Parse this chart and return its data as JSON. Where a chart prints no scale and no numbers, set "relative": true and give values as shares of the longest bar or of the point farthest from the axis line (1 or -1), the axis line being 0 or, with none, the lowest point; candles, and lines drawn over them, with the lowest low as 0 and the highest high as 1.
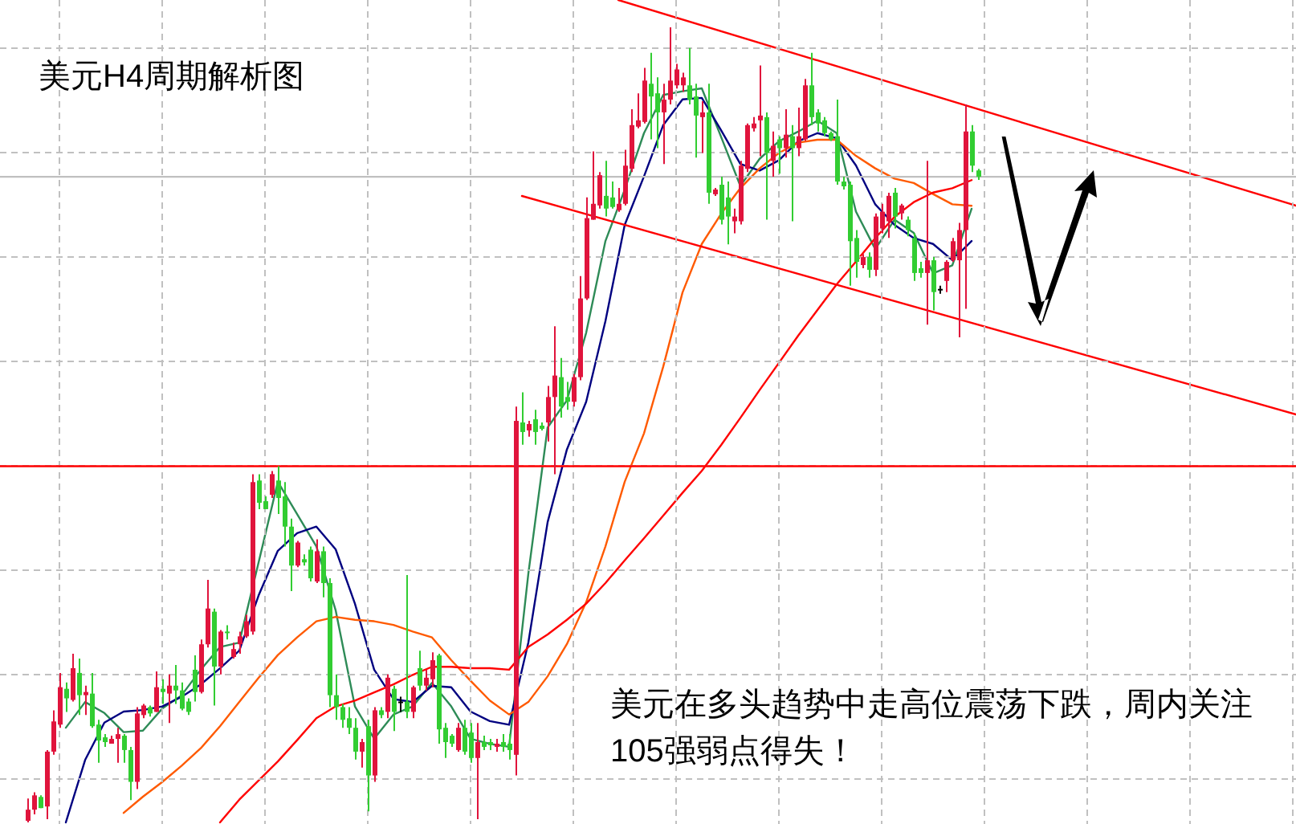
{
  "chart_data": [
    {
      "type": "candlestick",
      "title": "美元H4周期解析图",
      "annotations": [
        "美元在多头趋势中走高位震荡下跌，周内关注105强弱点得失！"
      ],
      "relative": true,
      "grid": true,
      "categories": [
        null,
        null,
        null,
        null,
        null,
        null,
        null,
        null,
        null,
        null,
        null,
        null,
        null,
        null,
        null,
        null,
        null,
        null,
        null,
        null,
        null,
        null,
        null,
        null,
        null,
        null,
        null,
        null,
        null,
        null,
        null,
        null,
        null,
        null,
        null,
        null,
        null,
        null,
        null,
        null,
        null,
        null,
        null,
        null,
        null,
        null,
        null,
        null,
        null,
        null,
        null,
        null,
        null,
        null,
        null,
        null,
        null,
        null,
        null,
        null,
        null,
        null,
        null,
        null,
        null,
        null,
        null,
        null,
        null,
        null,
        null,
        null,
        null,
        null,
        null,
        null,
        null,
        null,
        null,
        null,
        null,
        null,
        null,
        null,
        null,
        null,
        null,
        null,
        null,
        null,
        null,
        null,
        null,
        null,
        null,
        null,
        null,
        null,
        null,
        null,
        null,
        null,
        null,
        null,
        null,
        null,
        null,
        null,
        null,
        null,
        null,
        null,
        null,
        null,
        null,
        null,
        null,
        null,
        null,
        null,
        null,
        null,
        null,
        null,
        null,
        null,
        null,
        null,
        null,
        null,
        null,
        null,
        null,
        null,
        null,
        null,
        null,
        null,
        null,
        null,
        null,
        null,
        null,
        null,
        null,
        null,
        null,
        null,
        null
      ],
      "ohlc": [
        [
          0.002,
          0.03,
          0,
          0.016
        ],
        [
          0.016,
          0.038,
          0.01,
          0.034
        ],
        [
          0.032,
          0.034,
          0.018,
          0.018
        ],
        [
          0.02,
          0.091,
          0.004,
          0.089
        ],
        [
          0.089,
          0.141,
          0.085,
          0.127
        ],
        [
          0.123,
          0.188,
          0.119,
          0.17
        ],
        [
          0.168,
          0.176,
          0.139,
          0.156
        ],
        [
          0.154,
          0.212,
          0.152,
          0.194
        ],
        [
          0.188,
          0.206,
          0.135,
          0.16
        ],
        [
          0.16,
          0.172,
          0.135,
          0.164
        ],
        [
          0.162,
          0.188,
          0.119,
          0.121
        ],
        [
          0.123,
          0.129,
          0.075,
          0.103
        ],
        [
          0.107,
          0.111,
          0.095,
          0.101
        ],
        [
          0.099,
          0.109,
          0.099,
          0.105
        ],
        [
          0.105,
          0.119,
          0.075,
          0.111
        ],
        [
          0.109,
          0.111,
          0.075,
          0.091
        ],
        [
          0.091,
          0.095,
          0.028,
          0.051
        ],
        [
          0.051,
          0.145,
          0.042,
          0.137
        ],
        [
          0.135,
          0.149,
          0.131,
          0.147
        ],
        [
          0.145,
          0.147,
          0.133,
          0.137
        ],
        [
          0.139,
          0.19,
          0.139,
          0.17
        ],
        [
          0.168,
          0.18,
          0.149,
          0.164
        ],
        [
          0.162,
          0.186,
          0.125,
          0.172
        ],
        [
          0.172,
          0.198,
          0.149,
          0.166
        ],
        [
          0.166,
          0.176,
          0.141,
          0.143
        ],
        [
          0.152,
          0.156,
          0.135,
          0.139
        ],
        [
          0.192,
          0.21,
          0.152,
          0.164
        ],
        [
          0.164,
          0.23,
          0.162,
          0.224
        ],
        [
          0.224,
          0.305,
          0.22,
          0.269
        ],
        [
          0.265,
          0.269,
          0.147,
          0.196
        ],
        [
          0.196,
          0.242,
          0.186,
          0.24
        ],
        [
          0.24,
          0.248,
          0.23,
          0.238
        ],
        [
          0.208,
          0.226,
          0.206,
          0.218
        ],
        [
          0.224,
          0.24,
          0.212,
          0.234
        ],
        [
          0.234,
          0.261,
          0.232,
          0.253
        ],
        [
          0.24,
          0.438,
          0.236,
          0.428
        ],
        [
          0.43,
          0.438,
          0.394,
          0.402
        ],
        [
          0.404,
          0.41,
          0.394,
          0.394
        ],
        [
          0.412,
          0.442,
          0.408,
          0.438
        ],
        [
          0.43,
          0.448,
          0.388,
          0.408
        ],
        [
          0.41,
          0.428,
          0.347,
          0.372
        ],
        [
          0.372,
          0.382,
          0.291,
          0.323
        ],
        [
          0.323,
          0.354,
          0.321,
          0.352
        ],
        [
          0.331,
          0.337,
          0.323,
          0.327
        ],
        [
          0.343,
          0.347,
          0.303,
          0.307
        ],
        [
          0.303,
          0.356,
          0.301,
          0.341
        ],
        [
          0.341,
          0.347,
          0.283,
          0.301
        ],
        [
          0.301,
          0.307,
          0.145,
          0.16
        ],
        [
          0.16,
          0.186,
          0.129,
          0.145
        ],
        [
          0.145,
          0.149,
          0.119,
          0.129
        ],
        [
          0.131,
          0.145,
          0.111,
          0.119
        ],
        [
          0.119,
          0.131,
          0.079,
          0.089
        ],
        [
          0.089,
          0.105,
          0.069,
          0.101
        ],
        [
          0.121,
          0.129,
          0.014,
          0.059
        ],
        [
          0.059,
          0.145,
          0.051,
          0.141
        ],
        [
          0.141,
          0.145,
          0.131,
          0.135
        ],
        [
          0.139,
          0.186,
          0.131,
          0.182
        ],
        [
          0.168,
          0.172,
          0.115,
          0.139
        ],
        [
          0.152,
          0.158,
          0.139,
          0.152
        ],
        [
          0.152,
          0.311,
          0.131,
          0.139
        ],
        [
          0.139,
          0.172,
          0.131,
          0.17
        ],
        [
          0.194,
          0.216,
          0.166,
          0.172
        ],
        [
          0.172,
          0.192,
          0.166,
          0.182
        ],
        [
          0.18,
          0.214,
          0.17,
          0.204
        ],
        [
          0.21,
          0.212,
          0.099,
          0.117
        ],
        [
          0.119,
          0.125,
          0.081,
          0.101
        ],
        [
          0.109,
          0.111,
          0.095,
          0.099
        ],
        [
          0.091,
          0.125,
          0.089,
          0.119
        ],
        [
          0.119,
          0.129,
          0.085,
          0.089
        ],
        [
          0.113,
          0.125,
          0.075,
          0.081
        ],
        [
          0.081,
          0.125,
          0.004,
          0.101
        ],
        [
          0.101,
          0.109,
          0.091,
          0.095
        ],
        [
          0.101,
          0.105,
          0.091,
          0.097
        ],
        [
          0.095,
          0.105,
          0.089,
          0.099
        ],
        [
          0.101,
          0.111,
          0.089,
          0.095
        ],
        [
          0.099,
          0.111,
          0.079,
          0.091
        ],
        [
          0.085,
          0.523,
          0.059,
          0.505
        ],
        [
          0.503,
          0.541,
          0.475,
          0.491
        ],
        [
          0.493,
          0.505,
          0.485,
          0.501
        ],
        [
          0.507,
          0.519,
          0.475,
          0.491
        ],
        [
          0.499,
          0.503,
          0.493,
          0.495
        ],
        [
          0.503,
          0.549,
          0.479,
          0.535
        ],
        [
          0.535,
          0.624,
          0.438,
          0.562
        ],
        [
          0.56,
          0.584,
          0.509,
          0.523
        ],
        [
          0.535,
          0.554,
          0.519,
          0.529
        ],
        [
          0.529,
          0.564,
          0.523,
          0.56
        ],
        [
          0.56,
          0.687,
          0.556,
          0.659
        ],
        [
          0.659,
          0.786,
          0.657,
          0.76
        ],
        [
          0.758,
          0.844,
          0.758,
          0.778
        ],
        [
          0.776,
          0.818,
          0.772,
          0.814
        ],
        [
          0.788,
          0.832,
          0.762,
          0.772
        ],
        [
          0.786,
          0.806,
          0.772,
          0.774
        ],
        [
          0.77,
          0.798,
          0.768,
          0.778
        ],
        [
          0.778,
          0.846,
          0.776,
          0.826
        ],
        [
          0.822,
          0.897,
          0.818,
          0.877
        ],
        [
          0.875,
          0.917,
          0.873,
          0.883
        ],
        [
          0.881,
          0.949,
          0.879,
          0.933
        ],
        [
          0.929,
          0.968,
          0.859,
          0.913
        ],
        [
          0.917,
          0.937,
          0.848,
          0.893
        ],
        [
          0.893,
          0.929,
          0.828,
          0.909
        ],
        [
          0.909,
          1,
          0.903,
          0.933
        ],
        [
          0.927,
          0.954,
          0.923,
          0.947
        ],
        [
          0.927,
          0.943,
          0.919,
          0.937
        ],
        [
          0.927,
          0.974,
          0.903,
          0.909
        ],
        [
          0.913,
          0.929,
          0.836,
          0.889
        ],
        [
          0.887,
          0.907,
          0.842,
          0.893
        ],
        [
          0.893,
          0.929,
          0.778,
          0.792
        ],
        [
          0.79,
          0.798,
          0.788,
          0.796
        ],
        [
          0.802,
          0.812,
          0.752,
          0.758
        ],
        [
          0.786,
          0.806,
          0.727,
          0.762
        ],
        [
          0.756,
          0.772,
          0.741,
          0.762
        ],
        [
          0.756,
          0.832,
          0.752,
          0.826
        ],
        [
          0.822,
          0.879,
          0.818,
          0.877
        ],
        [
          0.873,
          0.887,
          0.869,
          0.879
        ],
        [
          0.883,
          0.952,
          0.838,
          0.889
        ],
        [
          0.887,
          0.893,
          0.758,
          0.842
        ],
        [
          0.832,
          0.869,
          0.812,
          0.851
        ],
        [
          0.859,
          0.863,
          0.816,
          0.848
        ],
        [
          0.848,
          0.897,
          0.836,
          0.865
        ],
        [
          0.863,
          0.877,
          0.756,
          0.848
        ],
        [
          0.848,
          0.899,
          0.838,
          0.863
        ],
        [
          0.859,
          0.935,
          0.857,
          0.927
        ],
        [
          0.927,
          0.968,
          0.877,
          0.887
        ],
        [
          0.893,
          0.897,
          0.869,
          0.879
        ],
        [
          0.883,
          0.887,
          0.863,
          0.867
        ],
        [
          0.867,
          0.869,
          0.857,
          0.859
        ],
        [
          0.863,
          0.909,
          0.802,
          0.806
        ],
        [
          0.806,
          0.812,
          0.796,
          0.8
        ],
        [
          0.802,
          0.806,
          0.675,
          0.731
        ],
        [
          0.735,
          0.745,
          0.685,
          0.705
        ],
        [
          0.701,
          0.715,
          0.697,
          0.711
        ],
        [
          0.711,
          0.717,
          0.685,
          0.695
        ],
        [
          0.695,
          0.766,
          0.687,
          0.762
        ],
        [
          0.747,
          0.778,
          0.741,
          0.768
        ],
        [
          0.756,
          0.792,
          0.735,
          0.788
        ],
        [
          0.792,
          0.798,
          0.747,
          0.762
        ],
        [
          0.766,
          0.778,
          0.758,
          0.776
        ],
        [
          0.758,
          0.762,
          0.737,
          0.745
        ],
        [
          0.735,
          0.741,
          0.681,
          0.691
        ],
        [
          0.697,
          0.705,
          0.685,
          0.691
        ],
        [
          0.691,
          0.832,
          0.626,
          0.707
        ],
        [
          0.707,
          0.711,
          0.644,
          0.667
        ],
        [
          0.671,
          0.675,
          0.665,
          0.671
        ],
        [
          0.681,
          0.707,
          0.667,
          0.705
        ],
        [
          0.707,
          0.735,
          0.705,
          0.731
        ],
        [
          0.707,
          0.754,
          0.61,
          0.745
        ],
        [
          0.745,
          0.903,
          0.646,
          0.869
        ],
        [
          0.869,
          0.877,
          0.818,
          0.826
        ],
        [
          0.82,
          0.822,
          0.808,
          0.812
        ]
      ],
      "colors": [
        "#e0143c",
        "#e0143c",
        "#32cd32",
        "#e0143c",
        "#e0143c",
        "#e0143c",
        "#32cd32",
        "#e0143c",
        "#32cd32",
        "#e0143c",
        "#32cd32",
        "#32cd32",
        "#32cd32",
        "#e0143c",
        "#e0143c",
        "#32cd32",
        "#32cd32",
        "#e0143c",
        "#e0143c",
        "#32cd32",
        "#e0143c",
        "#32cd32",
        "#e0143c",
        "#32cd32",
        "#32cd32",
        "#32cd32",
        "#32cd32",
        "#e0143c",
        "#e0143c",
        "#32cd32",
        "#e0143c",
        "#32cd32",
        "#e0143c",
        "#e0143c",
        "#e0143c",
        "#e0143c",
        "#32cd32",
        "#32cd32",
        "#e0143c",
        "#32cd32",
        "#32cd32",
        "#32cd32",
        "#e0143c",
        "#32cd32",
        "#32cd32",
        "#e0143c",
        "#32cd32",
        "#32cd32",
        "#32cd32",
        "#32cd32",
        "#32cd32",
        "#32cd32",
        "#e0143c",
        "#32cd32",
        "#e0143c",
        "#32cd32",
        "#e0143c",
        "#32cd32",
        "#000000",
        "#32cd32",
        "#e0143c",
        "#32cd32",
        "#e0143c",
        "#e0143c",
        "#32cd32",
        "#32cd32",
        "#32cd32",
        "#e0143c",
        "#32cd32",
        "#32cd32",
        "#e0143c",
        "#32cd32",
        "#32cd32",
        "#e0143c",
        "#32cd32",
        "#32cd32",
        "#e0143c",
        "#32cd32",
        "#e0143c",
        "#32cd32",
        "#32cd32",
        "#e0143c",
        "#e0143c",
        "#32cd32",
        "#32cd32",
        "#e0143c",
        "#e0143c",
        "#e0143c",
        "#e0143c",
        "#e0143c",
        "#32cd32",
        "#32cd32",
        "#e0143c",
        "#e0143c",
        "#e0143c",
        "#e0143c",
        "#e0143c",
        "#32cd32",
        "#32cd32",
        "#e0143c",
        "#e0143c",
        "#e0143c",
        "#e0143c",
        "#32cd32",
        "#32cd32",
        "#e0143c",
        "#32cd32",
        "#e0143c",
        "#32cd32",
        "#32cd32",
        "#e0143c",
        "#e0143c",
        "#e0143c",
        "#e0143c",
        "#e0143c",
        "#32cd32",
        "#e0143c",
        "#32cd32",
        "#e0143c",
        "#32cd32",
        "#e0143c",
        "#e0143c",
        "#32cd32",
        "#32cd32",
        "#32cd32",
        "#32cd32",
        "#32cd32",
        "#32cd32",
        "#32cd32",
        "#32cd32",
        "#e0143c",
        "#32cd32",
        "#e0143c",
        "#e0143c",
        "#e0143c",
        "#32cd32",
        "#e0143c",
        "#32cd32",
        "#32cd32",
        "#32cd32",
        "#e0143c",
        "#32cd32",
        "#000000",
        "#e0143c",
        "#e0143c",
        "#e0143c",
        "#e0143c",
        "#32cd32",
        "#32cd32"
      ],
      "ref_lines": [
        {
          "axis": "y",
          "value": 0.448,
          "color": "#ff0000"
        },
        {
          "axis": "y",
          "value": 0.812,
          "color": "#c0c0c0"
        }
      ]
    },
    {
      "type": "line",
      "relative": true,
      "categories": [
        null,
        null,
        null,
        null,
        null,
        null,
        null,
        null,
        null,
        null,
        null,
        null,
        null,
        null,
        null,
        null,
        null,
        null,
        null,
        null,
        null,
        null,
        null,
        null,
        null,
        null,
        null,
        null,
        null,
        null,
        null,
        null,
        null,
        null,
        null,
        null,
        null,
        null,
        null,
        null,
        null,
        null,
        null,
        null,
        null,
        null,
        null,
        null,
        null,
        null
      ],
      "series": [
        {
          "color": "#2e8b57",
          "values": [
            null,
            null,
            0.129,
            0.164,
            0.149,
            0.123,
            0.125,
            0.155,
            0.173,
            0.208,
            0.239,
            0.245,
            0.354,
            0.464,
            0.42,
            0.376,
            0.289,
            0.158,
            0.114,
            0.147,
            0.158,
            0.19,
            0.158,
            0.114,
            0.107,
            0.103,
            0.339,
            0.538,
            0.575,
            0.667,
            0.792,
            0.862,
            0.939,
            0.991,
            0.996,
            1,
            0.934,
            0.867,
            0.904,
            0.928,
            0.941,
            0.956,
            0.939,
            0.832,
            0.781,
            0.821,
            0.803,
            0.748,
            0.759,
            0.836
          ]
        },
        {
          "color": "#000080",
          "values": [
            null,
            null,
            0,
            0.085,
            0.136,
            0.151,
            0.153,
            0.158,
            0.171,
            0.188,
            0.21,
            0.234,
            0.309,
            0.37,
            0.394,
            0.403,
            0.372,
            0.298,
            0.208,
            0.168,
            0.164,
            0.186,
            0.184,
            0.151,
            0.138,
            0.133,
            0.245,
            0.409,
            0.508,
            0.573,
            0.683,
            0.814,
            0.88,
            0.95,
            0.985,
            0.987,
            0.943,
            0.897,
            0.888,
            0.902,
            0.928,
            0.939,
            0.932,
            0.895,
            0.842,
            0.814,
            0.796,
            0.788,
            0.766,
            0.792
          ]
        },
        {
          "color": "#ff5a00",
          "values": [
            null,
            null,
            null,
            null,
            null,
            0.013,
            0.035,
            0.055,
            0.077,
            0.101,
            0.131,
            0.164,
            0.197,
            0.228,
            0.252,
            0.274,
            0.28,
            0.276,
            0.274,
            0.269,
            0.26,
            0.252,
            0.221,
            0.193,
            0.166,
            0.147,
            0.164,
            0.199,
            0.243,
            0.3,
            0.376,
            0.464,
            0.53,
            0.621,
            0.722,
            0.788,
            0.829,
            0.864,
            0.891,
            0.912,
            0.926,
            0.93,
            0.93,
            0.908,
            0.891,
            0.877,
            0.871,
            0.856,
            0.842,
            0.84
          ]
        },
        {
          "color": "#ff0000",
          "values": [
            null,
            null,
            null,
            null,
            null,
            null,
            null,
            null,
            null,
            null,
            0,
            0.031,
            0.057,
            0.083,
            0.112,
            0.142,
            0.158,
            0.166,
            0.177,
            0.188,
            0.201,
            0.212,
            0.212,
            0.21,
            0.21,
            0.208,
            0.239,
            0.256,
            0.276,
            0.298,
            0.326,
            0.357,
            0.387,
            0.418,
            0.449,
            0.479,
            0.514,
            0.551,
            0.589,
            0.626,
            0.663,
            0.698,
            0.733,
            0.764,
            0.796,
            0.825,
            0.845,
            0.858,
            0.864,
            0.875
          ]
        }
      ]
    },
    {
      "type": "line",
      "relative": true,
      "categories": [
        null,
        null
      ],
      "series": [
        {
          "color": "#ff0000",
          "values": [
            1,
            0
          ]
        }
      ]
    },
    {
      "type": "line",
      "relative": true,
      "categories": [
        null,
        null
      ],
      "series": [
        {
          "color": "#ff0000",
          "values": [
            1,
            0
          ]
        }
      ]
    }
  ]
}
